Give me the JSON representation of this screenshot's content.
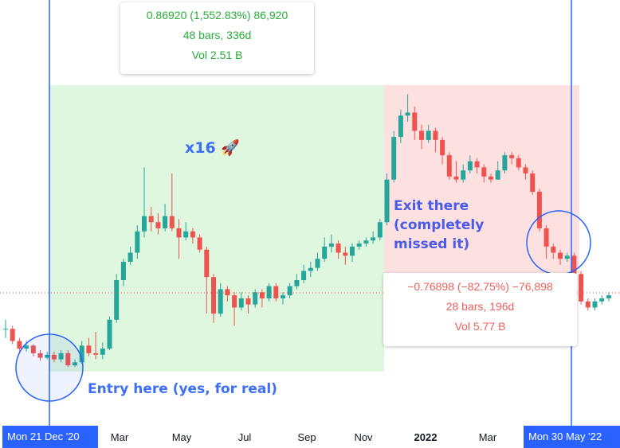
{
  "chart_data": {
    "type": "candlestick",
    "x_ticks": [
      "Mar",
      "May",
      "Jul",
      "Sep",
      "Nov",
      "2022",
      "Mar"
    ],
    "y_range_approx": [
      0.02,
      0.95
    ],
    "candles": [
      [
        0.15,
        0.15,
        0.18,
        0.12
      ],
      [
        0.15,
        0.11,
        0.16,
        0.1
      ],
      [
        0.11,
        0.085,
        0.12,
        0.075
      ],
      [
        0.085,
        0.095,
        0.11,
        0.075
      ],
      [
        0.095,
        0.07,
        0.1,
        0.06
      ],
      [
        0.07,
        0.055,
        0.08,
        0.045
      ],
      [
        0.055,
        0.065,
        0.075,
        0.05
      ],
      [
        0.065,
        0.05,
        0.075,
        0.04
      ],
      [
        0.05,
        0.07,
        0.08,
        0.04
      ],
      [
        0.07,
        0.03,
        0.08,
        0.025
      ],
      [
        0.03,
        0.04,
        0.05,
        0.025
      ],
      [
        0.04,
        0.095,
        0.11,
        0.035
      ],
      [
        0.095,
        0.07,
        0.12,
        0.06
      ],
      [
        0.07,
        0.065,
        0.14,
        0.05
      ],
      [
        0.065,
        0.085,
        0.105,
        0.05
      ],
      [
        0.085,
        0.18,
        0.19,
        0.08
      ],
      [
        0.18,
        0.31,
        0.33,
        0.17
      ],
      [
        0.31,
        0.37,
        0.38,
        0.29
      ],
      [
        0.37,
        0.4,
        0.42,
        0.36
      ],
      [
        0.4,
        0.47,
        0.49,
        0.38
      ],
      [
        0.47,
        0.52,
        0.68,
        0.45
      ],
      [
        0.52,
        0.5,
        0.55,
        0.47
      ],
      [
        0.5,
        0.48,
        0.53,
        0.46
      ],
      [
        0.48,
        0.52,
        0.56,
        0.47
      ],
      [
        0.52,
        0.48,
        0.66,
        0.47
      ],
      [
        0.48,
        0.45,
        0.51,
        0.38
      ],
      [
        0.45,
        0.47,
        0.5,
        0.44
      ],
      [
        0.47,
        0.45,
        0.48,
        0.43
      ],
      [
        0.45,
        0.41,
        0.46,
        0.4
      ],
      [
        0.41,
        0.32,
        0.42,
        0.2
      ],
      [
        0.32,
        0.2,
        0.33,
        0.17
      ],
      [
        0.2,
        0.28,
        0.3,
        0.19
      ],
      [
        0.28,
        0.26,
        0.29,
        0.24
      ],
      [
        0.26,
        0.22,
        0.27,
        0.16
      ],
      [
        0.22,
        0.25,
        0.27,
        0.21
      ],
      [
        0.25,
        0.23,
        0.26,
        0.2
      ],
      [
        0.23,
        0.27,
        0.28,
        0.22
      ],
      [
        0.27,
        0.25,
        0.28,
        0.22
      ],
      [
        0.25,
        0.29,
        0.3,
        0.24
      ],
      [
        0.29,
        0.25,
        0.3,
        0.24
      ],
      [
        0.25,
        0.26,
        0.27,
        0.23
      ],
      [
        0.26,
        0.29,
        0.3,
        0.25
      ],
      [
        0.29,
        0.31,
        0.33,
        0.28
      ],
      [
        0.31,
        0.34,
        0.36,
        0.3
      ],
      [
        0.34,
        0.35,
        0.37,
        0.32
      ],
      [
        0.35,
        0.38,
        0.4,
        0.34
      ],
      [
        0.38,
        0.42,
        0.45,
        0.37
      ],
      [
        0.42,
        0.43,
        0.46,
        0.4
      ],
      [
        0.43,
        0.4,
        0.44,
        0.38
      ],
      [
        0.4,
        0.39,
        0.42,
        0.36
      ],
      [
        0.39,
        0.42,
        0.43,
        0.37
      ],
      [
        0.42,
        0.43,
        0.44,
        0.41
      ],
      [
        0.43,
        0.44,
        0.45,
        0.42
      ],
      [
        0.44,
        0.45,
        0.47,
        0.43
      ],
      [
        0.45,
        0.5,
        0.51,
        0.44
      ],
      [
        0.5,
        0.64,
        0.66,
        0.49
      ],
      [
        0.64,
        0.78,
        0.8,
        0.63
      ],
      [
        0.78,
        0.85,
        0.87,
        0.76
      ],
      [
        0.85,
        0.86,
        0.92,
        0.83
      ],
      [
        0.86,
        0.8,
        0.88,
        0.77
      ],
      [
        0.8,
        0.77,
        0.82,
        0.74
      ],
      [
        0.77,
        0.8,
        0.82,
        0.76
      ],
      [
        0.8,
        0.77,
        0.81,
        0.73
      ],
      [
        0.77,
        0.72,
        0.78,
        0.69
      ],
      [
        0.72,
        0.65,
        0.73,
        0.64
      ],
      [
        0.65,
        0.64,
        0.7,
        0.63
      ],
      [
        0.64,
        0.67,
        0.69,
        0.63
      ],
      [
        0.67,
        0.7,
        0.72,
        0.66
      ],
      [
        0.7,
        0.68,
        0.71,
        0.66
      ],
      [
        0.68,
        0.65,
        0.69,
        0.63
      ],
      [
        0.65,
        0.64,
        0.66,
        0.63
      ],
      [
        0.64,
        0.67,
        0.7,
        0.64
      ],
      [
        0.67,
        0.72,
        0.73,
        0.66
      ],
      [
        0.72,
        0.71,
        0.73,
        0.69
      ],
      [
        0.71,
        0.68,
        0.72,
        0.67
      ],
      [
        0.68,
        0.66,
        0.69,
        0.64
      ],
      [
        0.66,
        0.6,
        0.67,
        0.59
      ],
      [
        0.6,
        0.48,
        0.61,
        0.47
      ],
      [
        0.48,
        0.42,
        0.49,
        0.38
      ],
      [
        0.42,
        0.4,
        0.43,
        0.38
      ],
      [
        0.4,
        0.38,
        0.41,
        0.36
      ],
      [
        0.38,
        0.39,
        0.4,
        0.37
      ],
      [
        0.39,
        0.33,
        0.4,
        0.3
      ],
      [
        0.33,
        0.24,
        0.34,
        0.23
      ],
      [
        0.24,
        0.22,
        0.25,
        0.21
      ],
      [
        0.22,
        0.24,
        0.25,
        0.21
      ],
      [
        0.24,
        0.25,
        0.26,
        0.23
      ],
      [
        0.25,
        0.26,
        0.27,
        0.24
      ]
    ],
    "position": {
      "entry_date": "Mon 21 Dec '20",
      "exit_date": "Mon 30 May '22"
    }
  },
  "long_tooltip": {
    "line1": "0.86920 (1,552.83%) 86,920",
    "line2": "48 bars, 336d",
    "line3": "Vol 2.51 B"
  },
  "short_tooltip": {
    "line1": "−0.76898 (−82.75%) −76,898",
    "line2": "28 bars, 196d",
    "line3": "Vol 5.77 B"
  },
  "annotations": {
    "x16": "x16 🚀",
    "exit_line1": "Exit there",
    "exit_line2": "(completely",
    "exit_line3": "missed it)",
    "entry": "Entry here (yes, for real)"
  },
  "flags": {
    "start": "Mon 21 Dec '20",
    "end": "Mon 30 May '22"
  },
  "colors": {
    "up": "#26a69a",
    "down": "#ef5350",
    "long_zone": "#dff6df",
    "short_zone": "#fde0e0",
    "marker_line": "#2962ff"
  }
}
